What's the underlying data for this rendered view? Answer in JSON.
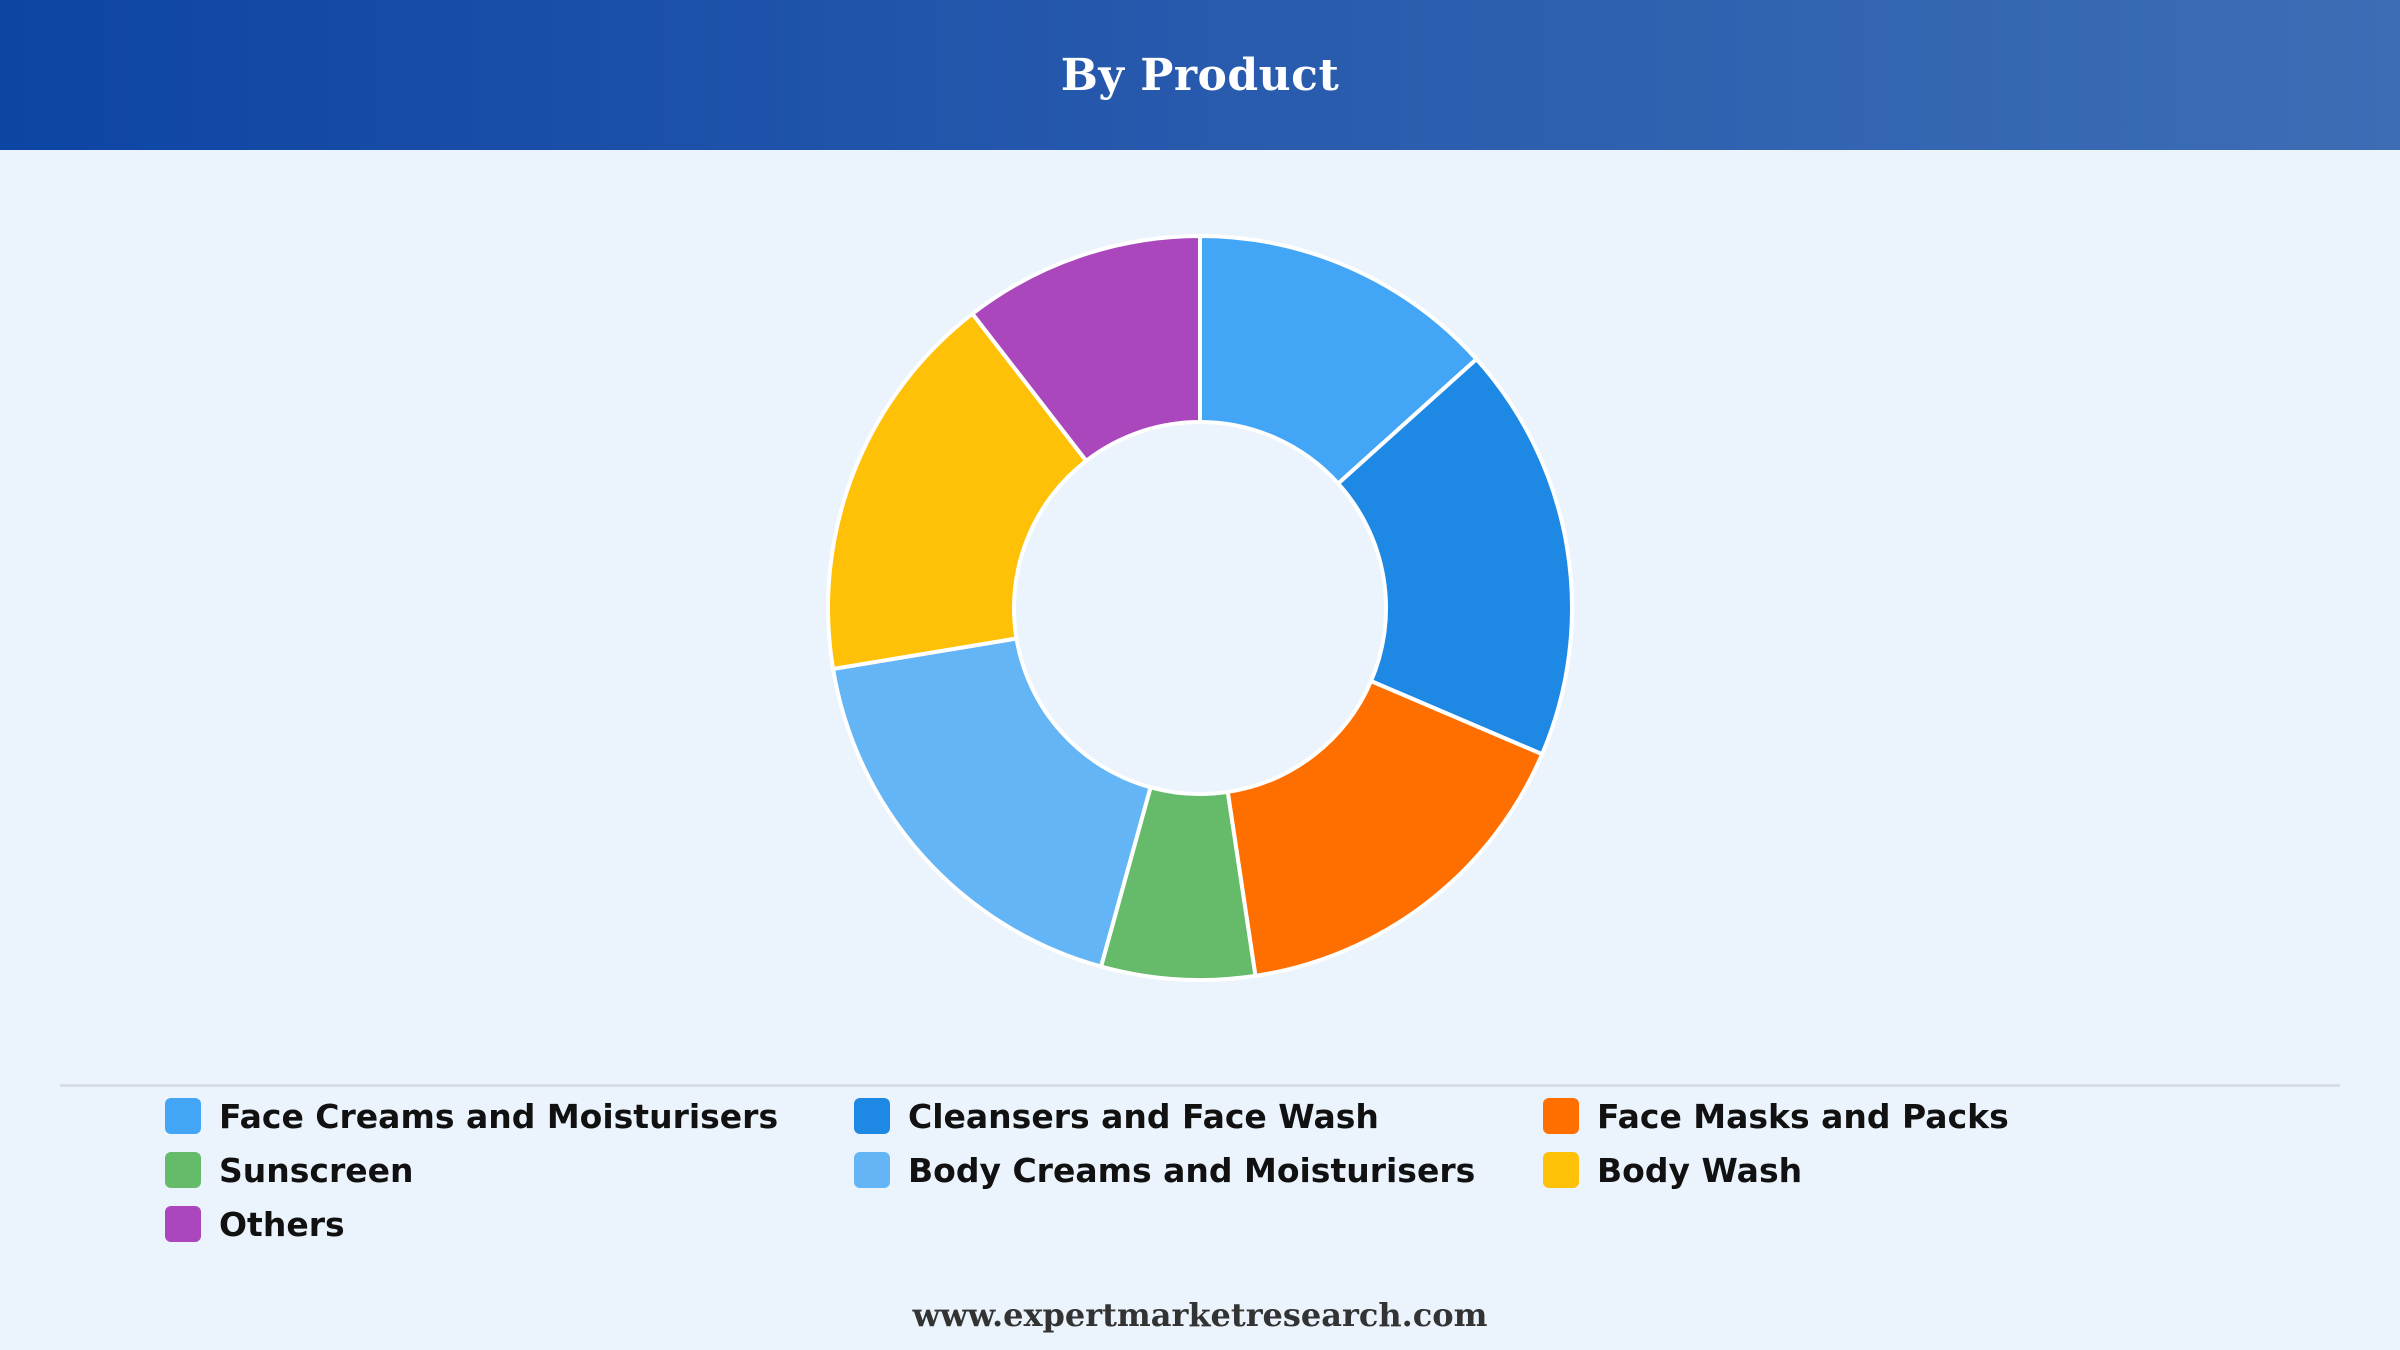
{
  "header": {
    "title": "By Product"
  },
  "chart_data": {
    "type": "pie",
    "title": "By Product",
    "donut": true,
    "legend_position": "bottom",
    "categories": [
      "Face Creams and Moisturisers",
      "Cleansers and Face Wash",
      "Face Masks and Packs",
      "Sunscreen",
      "Body Creams and Moisturisers",
      "Body Wash",
      "Others"
    ],
    "values": [
      14,
      19,
      17,
      7,
      19,
      18,
      11
    ],
    "colors": [
      "#42a5f5",
      "#1e88e5",
      "#ff6f00",
      "#66bb6a",
      "#64b5f6",
      "#ffc107",
      "#ab47bc"
    ]
  },
  "legend": {
    "items": [
      {
        "label": "Face Creams and Moisturisers",
        "color": "#42a5f5"
      },
      {
        "label": "Cleansers and Face Wash",
        "color": "#1e88e5"
      },
      {
        "label": "Face Masks and Packs",
        "color": "#ff6f00"
      },
      {
        "label": "Sunscreen",
        "color": "#66bb6a"
      },
      {
        "label": "Body Creams and Moisturisers",
        "color": "#64b5f6"
      },
      {
        "label": "Body Wash",
        "color": "#ffc107"
      },
      {
        "label": "Others",
        "color": "#ab47bc"
      }
    ]
  },
  "footer": {
    "url": "www.expertmarketresearch.com"
  }
}
